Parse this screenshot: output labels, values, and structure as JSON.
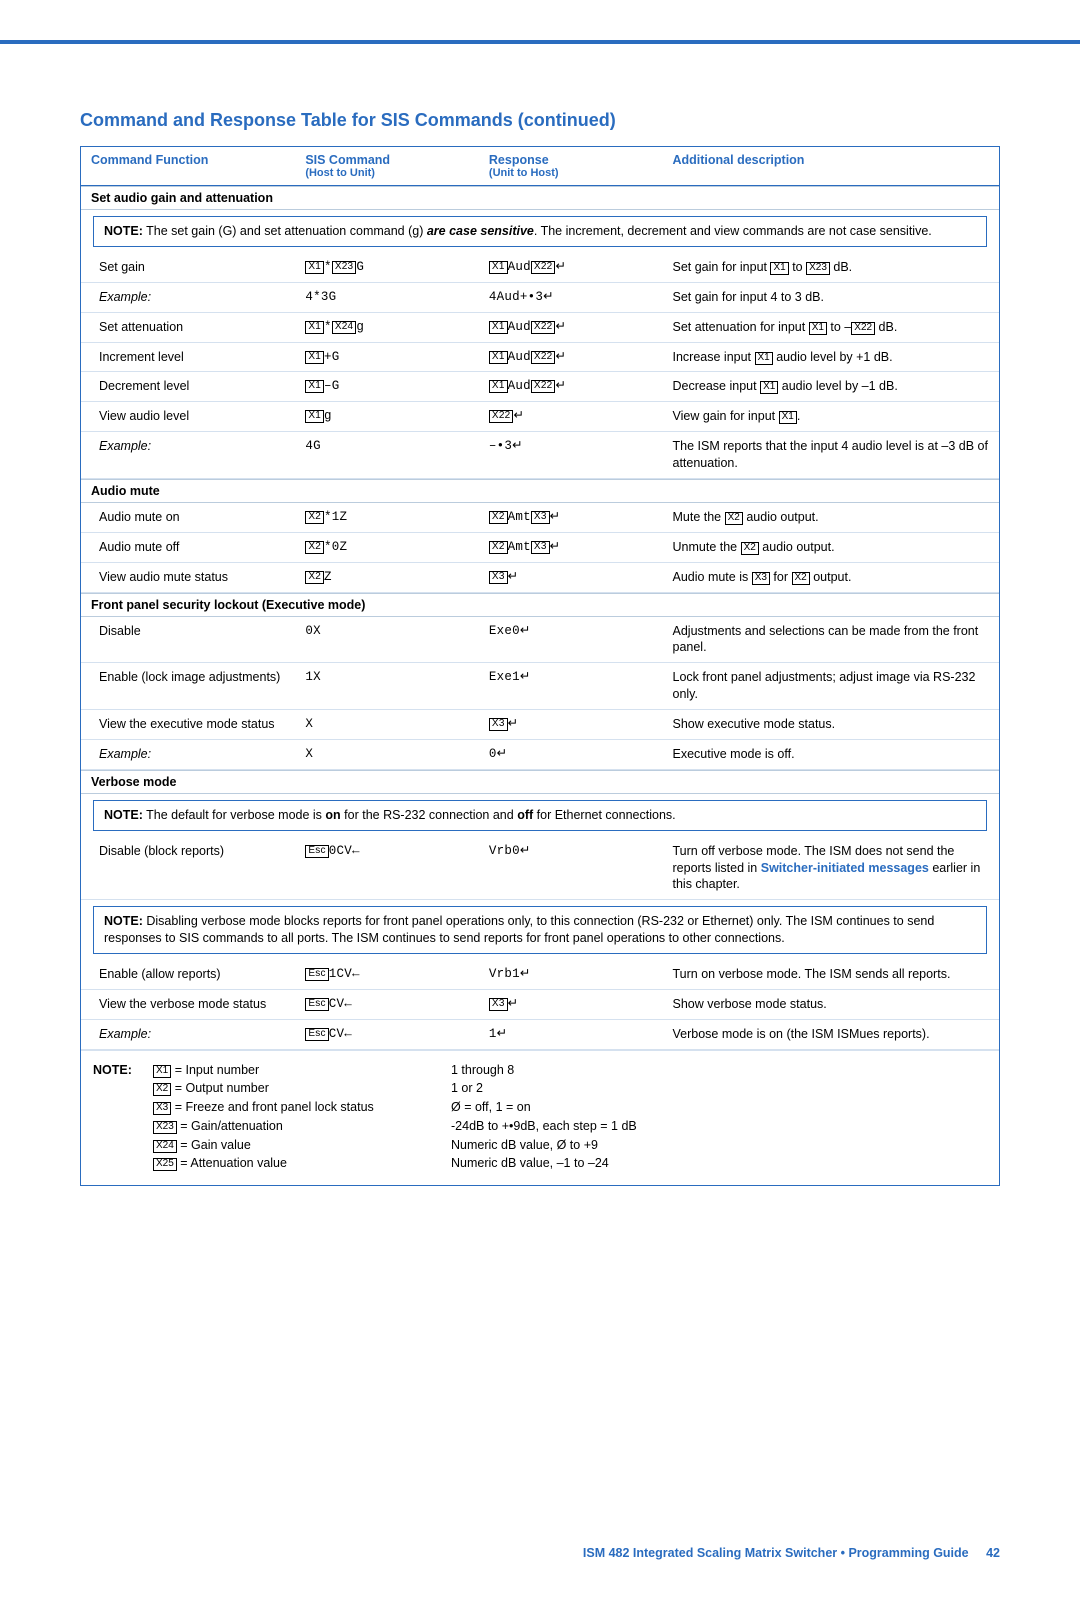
{
  "title": "Command and Response Table for SIS Commands (continued)",
  "headers": {
    "c1": "Command Function",
    "c2": "SIS Command",
    "c2sub": "(Host to Unit)",
    "c3": "Response",
    "c3sub": "(Unit to Host)",
    "c4": "Additional description"
  },
  "section_gain": "Set audio gain and attenuation",
  "note1_label": "NOTE:",
  "note1_text_a": "The set gain (G) and set attenuation command (g) ",
  "note1_text_b": "are case sensitive",
  "note1_text_c": ". The increment, decrement and view commands are not case sensitive.",
  "gain_rows": {
    "r1": {
      "c1": "Set gain",
      "c4a": "Set gain for input ",
      "c4b": " to ",
      "c4c": " dB."
    },
    "r2": {
      "c1": "Example:",
      "c2": "4*3G",
      "c3": "4Aud+•3",
      "c4": "Set gain for input 4 to 3 dB."
    },
    "r3": {
      "c1": "Set attenuation",
      "c4a": "Set attenuation for input ",
      "c4b": " to –",
      "c4c": " dB."
    },
    "r4": {
      "c1": "Increment level",
      "c2b": "+G",
      "c4a": "Increase input ",
      "c4b": " audio level by +1 dB."
    },
    "r5": {
      "c1": "Decrement level",
      "c2b": "–G",
      "c4a": "Decrease input ",
      "c4b": " audio level by –1 dB."
    },
    "r6": {
      "c1": "View audio level",
      "c2b": "g",
      "c4a": "View gain for input ",
      "c4b": "."
    },
    "r7": {
      "c1": "Example:",
      "c2": "4G",
      "c3": "–•3",
      "c4": "The ISM reports that the input 4 audio level is at –3 dB of attenuation."
    }
  },
  "section_mute": "Audio mute",
  "mute_rows": {
    "r1": {
      "c1": "Audio mute on",
      "c2b": "*1Z",
      "c4a": "Mute the ",
      "c4b": " audio output."
    },
    "r2": {
      "c1": "Audio mute off",
      "c2b": "*0Z",
      "c4a": "Unmute the ",
      "c4b": " audio output."
    },
    "r3": {
      "c1": "View audio mute status",
      "c2b": "Z",
      "c4a": "Audio mute is ",
      "c4b": " for ",
      "c4c": " output."
    }
  },
  "section_lock": "Front panel security lockout (Executive mode)",
  "lock_rows": {
    "r1": {
      "c1": "Disable",
      "c2": "0X",
      "c3": "Exe0",
      "c4": "Adjustments and selections can be made from the front panel."
    },
    "r2": {
      "c1": "Enable (lock image adjustments)",
      "c2": "1X",
      "c3": "Exe1",
      "c4": "Lock front panel adjustments; adjust image via RS-232 only."
    },
    "r3": {
      "c1": "View the executive mode status",
      "c2": "X",
      "c4": "Show executive mode status."
    },
    "r4": {
      "c1": "Example:",
      "c2": "X",
      "c3": "0",
      "c4": "Executive mode is off."
    }
  },
  "section_verbose": "Verbose mode",
  "note2_label": "NOTE:",
  "note2_text_a": "The default for verbose mode is ",
  "note2_text_b": "on",
  "note2_text_c": " for the RS-232 connection and ",
  "note2_text_d": "off",
  "note2_text_e": " for Ethernet connections.",
  "verbose_rows": {
    "r1": {
      "c1": "Disable (block reports)",
      "c2b": "0CV",
      "c3": "Vrb0",
      "c4a": "Turn off verbose mode.  The ISM does not send the reports listed in ",
      "c4link": "Switcher-initiated messages",
      "c4b": " earlier in this chapter."
    },
    "r2": {
      "c1": "Enable (allow reports)",
      "c2b": "1CV",
      "c3": "Vrb1",
      "c4": "Turn on verbose mode.  The ISM sends all reports."
    },
    "r3": {
      "c1": "View the verbose mode status",
      "c2b": "CV",
      "c4": "Show verbose mode status."
    },
    "r4": {
      "c1": "Example:",
      "c2b": "CV",
      "c3": "1",
      "c4": "Verbose mode is on (the ISM ISMues reports)."
    }
  },
  "note3_label": "NOTE:",
  "note3_text": "Disabling verbose mode blocks reports for front panel operations only, to this connection (RS-232 or Ethernet) only. The ISM continues to send responses to SIS commands to all ports. The ISM continues to send reports for front panel operations to other connections.",
  "legend_label": "NOTE:",
  "legend": {
    "l1": {
      "a": " = Input number",
      "b": "1 through 8"
    },
    "l2": {
      "a": " = Output number",
      "b": "1 or 2"
    },
    "l3": {
      "a": " = Freeze and front panel lock status",
      "b": "Ø = off, 1 = on"
    },
    "l4": {
      "a": " = Gain/attenuation",
      "b": "-24dB to +•9dB, each step = 1 dB"
    },
    "l5": {
      "a": " = Gain value",
      "b": "Numeric dB value, Ø to +9"
    },
    "l6": {
      "a": " = Attenuation value",
      "b": "Numeric dB value, –1 to –24"
    }
  },
  "footer_text": "ISM 482 Integrated Scaling Matrix Switcher • Programming Guide",
  "footer_page": "42"
}
